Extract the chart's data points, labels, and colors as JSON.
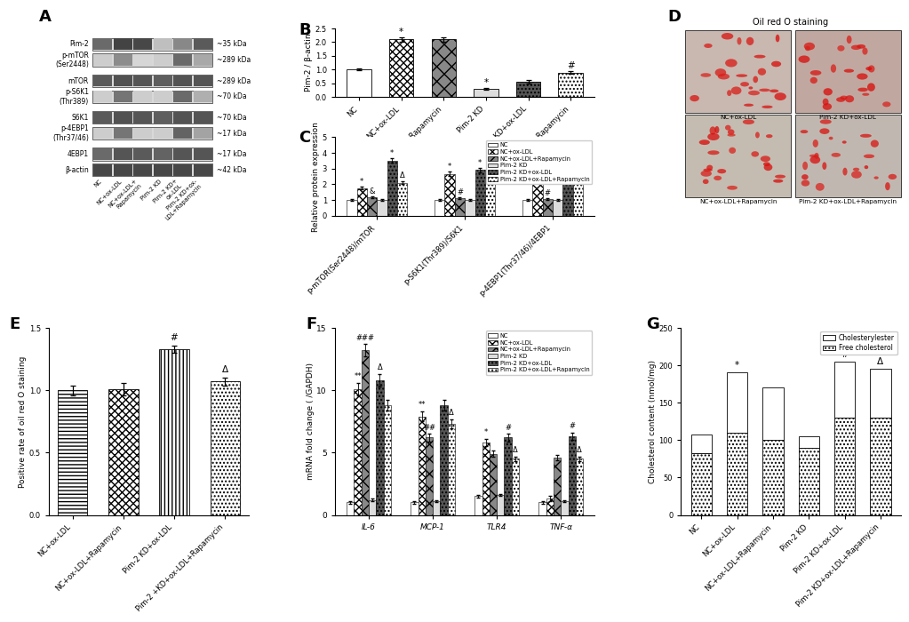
{
  "panel_B": {
    "ylabel": "Pim-2 / β-actin",
    "ylim": [
      0.0,
      2.5
    ],
    "yticks": [
      0.0,
      0.5,
      1.0,
      1.5,
      2.0,
      2.5
    ],
    "groups": [
      "NC",
      "NC+ox-LDL",
      "NC+ox-LDL+Rapamycin",
      "Pim-2 KD",
      "Pim-2 KD+ox-LDL",
      "Pim-2 KD+ox-LDL+Rapamycin"
    ],
    "values": [
      1.0,
      2.1,
      2.1,
      0.28,
      0.55,
      0.88
    ],
    "errors": [
      0.04,
      0.07,
      0.07,
      0.03,
      0.05,
      0.05
    ],
    "annotations": [
      "",
      "*",
      "",
      "*",
      "",
      "#"
    ]
  },
  "panel_C": {
    "ylabel": "Relative protein expression",
    "ylim": [
      0.0,
      5.0
    ],
    "yticks": [
      0,
      1,
      2,
      3,
      4,
      5
    ],
    "xgroups": [
      "p-mTOR(Ser2448)/mTOR",
      "p-S6K1(Thr389)/S6K1",
      "p-4EBP1(Thr37/46)/4EBP1"
    ],
    "series": {
      "NC": [
        1.0,
        1.0,
        1.0
      ],
      "NC+ox-LDL": [
        1.75,
        2.65,
        2.2
      ],
      "NC+ox-LDL+Rapamycin": [
        1.15,
        1.1,
        1.05
      ],
      "Pim-2 KD": [
        1.0,
        1.0,
        1.0
      ],
      "Pim-2 KD+ox-LDL": [
        3.5,
        2.9,
        3.5
      ],
      "Pim-2 KD+ox-LDL+Rapamycin": [
        2.1,
        2.1,
        2.7
      ]
    },
    "errors": {
      "NC": [
        0.05,
        0.05,
        0.05
      ],
      "NC+ox-LDL": [
        0.1,
        0.15,
        0.12
      ],
      "NC+ox-LDL+Rapamycin": [
        0.06,
        0.06,
        0.05
      ],
      "Pim-2 KD": [
        0.05,
        0.05,
        0.05
      ],
      "Pim-2 KD+ox-LDL": [
        0.15,
        0.13,
        0.15
      ],
      "Pim-2 KD+ox-LDL+Rapamycin": [
        0.1,
        0.1,
        0.12
      ]
    },
    "annot_C": {
      "0": {
        "1": "*",
        "2": "&",
        "4": "*",
        "5": "Δ"
      },
      "1": {
        "1": "*",
        "2": "#",
        "4": "*",
        "5": "Δ"
      },
      "2": {
        "1": "*",
        "2": "#",
        "4": "#",
        "5": "*"
      }
    }
  },
  "panel_E": {
    "ylabel": "Positive rate of oil red O staining",
    "ylim": [
      0.0,
      1.5
    ],
    "yticks": [
      0.0,
      0.5,
      1.0,
      1.5
    ],
    "groups": [
      "NC+ox-LDL",
      "NC+ox-LDL+Rapamycin",
      "Pim-2 KD+ox-LDL",
      "Pim-2 +KD+ox-LDL+Rapamycin"
    ],
    "values": [
      1.0,
      1.01,
      1.33,
      1.07
    ],
    "errors": [
      0.04,
      0.05,
      0.03,
      0.03
    ],
    "annotations": [
      "",
      "",
      "#",
      "Δ"
    ]
  },
  "panel_F": {
    "ylabel": "mRNA fold change ( /GAPDH)",
    "ylim": [
      0,
      15
    ],
    "yticks": [
      0,
      5,
      10,
      15
    ],
    "xgroups": [
      "IL-6",
      "MCP-1",
      "TLR4",
      "TNF-α"
    ],
    "series": {
      "NC": [
        1.0,
        1.0,
        1.5,
        1.0
      ],
      "NC+ox-LDL": [
        10.1,
        7.9,
        5.8,
        1.3
      ],
      "NC+ox-LDL+Rapamycin": [
        13.2,
        6.2,
        4.9,
        4.6
      ],
      "Pim-2 KD": [
        1.2,
        1.1,
        1.6,
        1.1
      ],
      "Pim-2 KD+ox-LDL": [
        10.8,
        8.8,
        6.2,
        6.3
      ],
      "Pim-2 KD+ox-LDL+Rapamycin": [
        8.8,
        7.3,
        4.5,
        4.5
      ]
    },
    "errors": {
      "NC": [
        0.1,
        0.1,
        0.1,
        0.1
      ],
      "NC+ox-LDL": [
        0.5,
        0.4,
        0.3,
        0.2
      ],
      "NC+ox-LDL+Rapamycin": [
        0.5,
        0.3,
        0.25,
        0.2
      ],
      "Pim-2 KD": [
        0.1,
        0.1,
        0.1,
        0.1
      ],
      "Pim-2 KD+ox-LDL": [
        0.5,
        0.4,
        0.3,
        0.3
      ],
      "Pim-2 KD+ox-LDL+Rapamycin": [
        0.4,
        0.35,
        0.2,
        0.2
      ]
    },
    "annot_F": {
      "IL-6": {
        "NC+ox-LDL": "**",
        "NC+ox-LDL+Rapamycin": "###",
        "Pim-2 KD+ox-LDL": "Δ"
      },
      "MCP-1": {
        "NC+ox-LDL": "**",
        "NC+ox-LDL+Rapamycin": "##",
        "Pim-2 KD+ox-LDL+Rapamycin": "Δ"
      },
      "TLR4": {
        "NC+ox-LDL": "*",
        "Pim-2 KD+ox-LDL": "#",
        "Pim-2 KD+ox-LDL+Rapamycin": "Δ"
      },
      "TNF-α": {
        "Pim-2 KD+ox-LDL": "#",
        "Pim-2 KD+ox-LDL+Rapamycin": "Δ"
      }
    }
  },
  "panel_G": {
    "ylabel": "Cholesterol content (nmol/mg)",
    "ylim": [
      0,
      250
    ],
    "yticks": [
      0,
      50,
      100,
      150,
      200,
      250
    ],
    "groups": [
      "NC",
      "NC+ox-LDL",
      "NC+ox-LDL+Rapamycin",
      "Pim-2 KD",
      "Pim-2 KD+ox-LDL",
      "Pim-2 KD+ox-LDL+Rapamycin"
    ],
    "cholesterylester": [
      25,
      80,
      70,
      15,
      75,
      65
    ],
    "freecholesterol": [
      82,
      110,
      100,
      90,
      130,
      130
    ],
    "annotations": [
      "",
      "*",
      "",
      "",
      "#",
      "Δ"
    ]
  },
  "legend_labels": [
    "NC",
    "NC+ox-LDL",
    "NC+ox-LDL+Rapamycin",
    "Pim-2 KD",
    "Pim-2 KD+ox-LDL",
    "Pim-2 KD+ox-LDL+Rapamycin"
  ],
  "background_color": "#ffffff"
}
